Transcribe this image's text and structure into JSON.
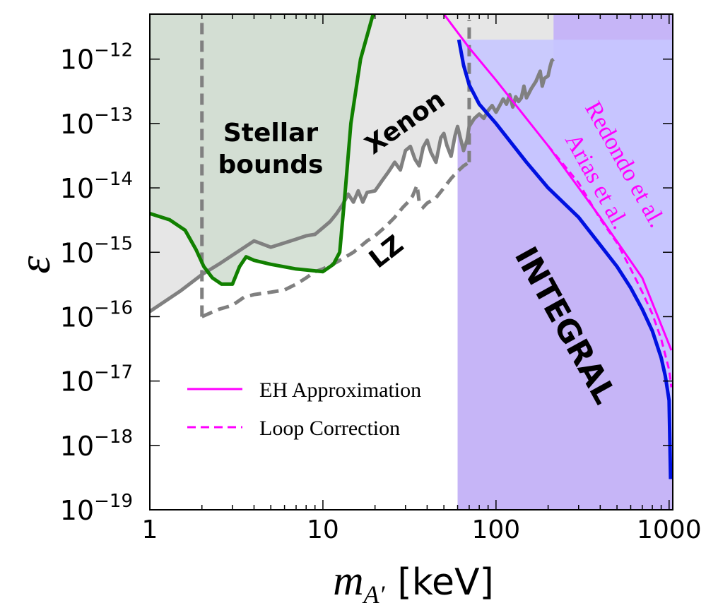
{
  "chart_data": {
    "type": "line",
    "xscale": "log",
    "yscale": "log",
    "xlim": [
      1,
      1050
    ],
    "ylim": [
      1e-19,
      5e-12
    ],
    "xlabel": {
      "math": "m",
      "sub": "A′",
      "unit": "[keV]"
    },
    "ylabel": "ε",
    "x_ticks": [
      {
        "value": 1,
        "label": "1"
      },
      {
        "value": 10,
        "label": "10"
      },
      {
        "value": 100,
        "label": "100"
      },
      {
        "value": 1000,
        "label": "1000"
      }
    ],
    "y_ticks": [
      {
        "value": 1e-12,
        "base": "10",
        "exp": "−12"
      },
      {
        "value": 1e-13,
        "base": "10",
        "exp": "−13"
      },
      {
        "value": 1e-14,
        "base": "10",
        "exp": "−14"
      },
      {
        "value": 1e-15,
        "base": "10",
        "exp": "−15"
      },
      {
        "value": 1e-16,
        "base": "10",
        "exp": "−16"
      },
      {
        "value": 1e-17,
        "base": "10",
        "exp": "−17"
      },
      {
        "value": 1e-18,
        "base": "10",
        "exp": "−18"
      },
      {
        "value": 1e-19,
        "base": "10",
        "exp": "−19"
      }
    ],
    "series": [
      {
        "name": "Stellar bounds",
        "color": "#118000",
        "fill": "#cfdccf",
        "points": [
          [
            1,
            4e-15
          ],
          [
            1.3,
            3.2e-15
          ],
          [
            1.6,
            2.2e-15
          ],
          [
            1.85,
            1.1e-15
          ],
          [
            2.05,
            6e-16
          ],
          [
            2.3,
            4e-16
          ],
          [
            2.6,
            3.2e-16
          ],
          [
            3,
            3.2e-16
          ],
          [
            3.3,
            6e-16
          ],
          [
            3.6,
            8.5e-16
          ],
          [
            4,
            7.5e-16
          ],
          [
            5,
            6.5e-16
          ],
          [
            7,
            5.5e-16
          ],
          [
            10,
            5e-16
          ],
          [
            11.5,
            6.5e-16
          ],
          [
            12.5,
            1e-15
          ],
          [
            13.5,
            1e-14
          ],
          [
            14.5,
            1e-13
          ],
          [
            16.5,
            1e-12
          ],
          [
            19.5,
            5e-12
          ]
        ]
      },
      {
        "name": "Xenon",
        "color": "#808080",
        "fill": "#e6e6e6",
        "points": [
          [
            1,
            1.2e-16
          ],
          [
            1.5,
            2.5e-16
          ],
          [
            2,
            4.5e-16
          ],
          [
            2.5,
            6.5e-16
          ],
          [
            3,
            9e-16
          ],
          [
            4,
            1.5e-15
          ],
          [
            5,
            1.2e-15
          ],
          [
            6,
            1.4e-15
          ],
          [
            7,
            1.6e-15
          ],
          [
            8,
            1.8e-15
          ],
          [
            9,
            1.9e-15
          ],
          [
            10,
            2.4e-15
          ],
          [
            11,
            3e-15
          ],
          [
            12,
            4e-15
          ],
          [
            13,
            5.5e-15
          ],
          [
            14,
            8e-15
          ],
          [
            15,
            6e-15
          ],
          [
            16,
            9e-15
          ],
          [
            17,
            6e-15
          ],
          [
            18,
            8.5e-15
          ],
          [
            20,
            9e-15
          ],
          [
            22,
            1.3e-14
          ],
          [
            24,
            1.8e-14
          ],
          [
            26,
            2.5e-14
          ],
          [
            28,
            1.9e-14
          ],
          [
            30,
            3.8e-14
          ],
          [
            32,
            4.4e-14
          ],
          [
            34,
            2.8e-14
          ],
          [
            36,
            2.2e-14
          ],
          [
            38,
            4.3e-14
          ],
          [
            40,
            5.5e-14
          ],
          [
            42,
            3.6e-14
          ],
          [
            45,
            2.5e-14
          ],
          [
            48,
            6e-14
          ],
          [
            50,
            7e-14
          ],
          [
            52,
            4.6e-14
          ],
          [
            55,
            3.1e-14
          ],
          [
            58,
            6.5e-14
          ],
          [
            60,
            9e-14
          ],
          [
            62,
            6.2e-14
          ],
          [
            65,
            3.8e-14
          ],
          [
            68,
            5.5e-14
          ],
          [
            70,
            9e-14
          ],
          [
            75,
            1.2e-13
          ],
          [
            80,
            1.4e-13
          ],
          [
            85,
            1.2e-13
          ],
          [
            90,
            1.6e-13
          ],
          [
            95,
            1.9e-13
          ],
          [
            100,
            1.5e-13
          ],
          [
            105,
            1.9e-13
          ],
          [
            110,
            2.4e-13
          ],
          [
            115,
            2e-13
          ],
          [
            120,
            2.8e-13
          ],
          [
            125,
            1.8e-13
          ],
          [
            130,
            2.6e-13
          ],
          [
            135,
            2.2e-13
          ],
          [
            140,
            2.5e-13
          ],
          [
            145,
            3.8e-13
          ],
          [
            150,
            2.5e-13
          ],
          [
            160,
            3.5e-13
          ],
          [
            170,
            4.5e-13
          ],
          [
            180,
            6.5e-13
          ],
          [
            185,
            3.8e-13
          ],
          [
            190,
            5e-13
          ],
          [
            200,
            5.5e-13
          ],
          [
            205,
            7.5e-13
          ],
          [
            210,
            9.5e-13
          ],
          [
            215,
            1e-12
          ]
        ]
      },
      {
        "name": "LZ",
        "color": "#808080",
        "dashed": true,
        "points": [
          [
            2,
            1e-16
          ],
          [
            2.5,
            1.3e-16
          ],
          [
            3,
            1.5e-16
          ],
          [
            3.5,
            2e-16
          ],
          [
            4,
            2.2e-16
          ],
          [
            5,
            2.4e-16
          ],
          [
            6,
            2.6e-16
          ],
          [
            7,
            3.2e-16
          ],
          [
            8,
            4e-16
          ],
          [
            9,
            5e-16
          ],
          [
            10,
            5.5e-16
          ],
          [
            12,
            7e-16
          ],
          [
            15,
            1e-15
          ],
          [
            18,
            1.5e-15
          ],
          [
            20,
            1.8e-15
          ],
          [
            23,
            2.5e-15
          ],
          [
            26,
            3.5e-15
          ],
          [
            29,
            5e-15
          ],
          [
            31,
            6e-15
          ],
          [
            33,
            7.5e-15
          ],
          [
            35,
            1.1e-14
          ],
          [
            36,
            6e-15
          ],
          [
            38,
            5e-15
          ],
          [
            40,
            5.8e-15
          ],
          [
            45,
            7e-15
          ],
          [
            50,
            1e-14
          ],
          [
            55,
            1.4e-14
          ],
          [
            60,
            1.8e-14
          ],
          [
            65,
            2.2e-14
          ],
          [
            70,
            2.5e-14
          ]
        ]
      },
      {
        "name": "INTEGRAL",
        "color": "#0011e0",
        "fill": "#c7c7ff",
        "points": [
          [
            61,
            2e-12
          ],
          [
            65,
            8e-13
          ],
          [
            70,
            4e-13
          ],
          [
            80,
            2e-13
          ],
          [
            100,
            1e-13
          ],
          [
            150,
            2.5e-14
          ],
          [
            200,
            1e-14
          ],
          [
            300,
            3.5e-15
          ],
          [
            400,
            1.3e-15
          ],
          [
            500,
            6e-16
          ],
          [
            600,
            2.8e-16
          ],
          [
            700,
            1.3e-16
          ],
          [
            800,
            6e-17
          ],
          [
            900,
            2.3e-17
          ],
          [
            950,
            1.2e-17
          ],
          [
            1000,
            5e-18
          ],
          [
            1020,
            3e-19
          ]
        ]
      },
      {
        "name": "EH Approximation",
        "color": "#ff00ff",
        "dashed": false,
        "points": [
          [
            50,
            5e-12
          ],
          [
            70,
            1.5e-12
          ],
          [
            100,
            4.7e-13
          ],
          [
            200,
            4.5e-14
          ],
          [
            400,
            3.5e-15
          ],
          [
            700,
            4e-16
          ],
          [
            1030,
            3e-17
          ]
        ]
      },
      {
        "name": "Loop Correction",
        "color": "#ff00ff",
        "dashed": true,
        "points": [
          [
            200,
            4.5e-14
          ],
          [
            300,
            1.2e-14
          ],
          [
            400,
            3.3e-15
          ],
          [
            500,
            1.4e-15
          ],
          [
            600,
            5.5e-16
          ],
          [
            700,
            2.4e-16
          ],
          [
            800,
            1.1e-16
          ],
          [
            900,
            4.5e-17
          ],
          [
            1000,
            1.5e-17
          ],
          [
            1030,
            8e-18
          ]
        ]
      },
      {
        "name": "Redondo et al. / Arias et al.",
        "color": "#9966ff",
        "fill": "#c6b5f7"
      }
    ],
    "dashed_vertical_lines": [
      {
        "x": 2,
        "y_from": 1e-16,
        "color": "#808080"
      },
      {
        "x": 70,
        "y_from": 2.5e-14,
        "color": "#808080"
      }
    ],
    "annotations": [
      {
        "id": "stellar",
        "lines": [
          "Stellar",
          "bounds"
        ],
        "color": "#118000"
      },
      {
        "id": "xenon",
        "text": "Xenon",
        "color": "#808080"
      },
      {
        "id": "lz",
        "text": "LZ",
        "color": "#808080"
      },
      {
        "id": "integral",
        "text": "INTEGRAL",
        "color": "#0011e0"
      },
      {
        "id": "redondo",
        "lines": [
          "Redondo et al.",
          "Arias et al."
        ],
        "color": "#ff00ff"
      }
    ],
    "legend": {
      "position": "lower-left",
      "entries": [
        {
          "label": "EH Approximation",
          "color": "#ff00ff",
          "style": "solid"
        },
        {
          "label": "Loop Correction",
          "color": "#ff00ff",
          "style": "dashed"
        }
      ]
    }
  }
}
